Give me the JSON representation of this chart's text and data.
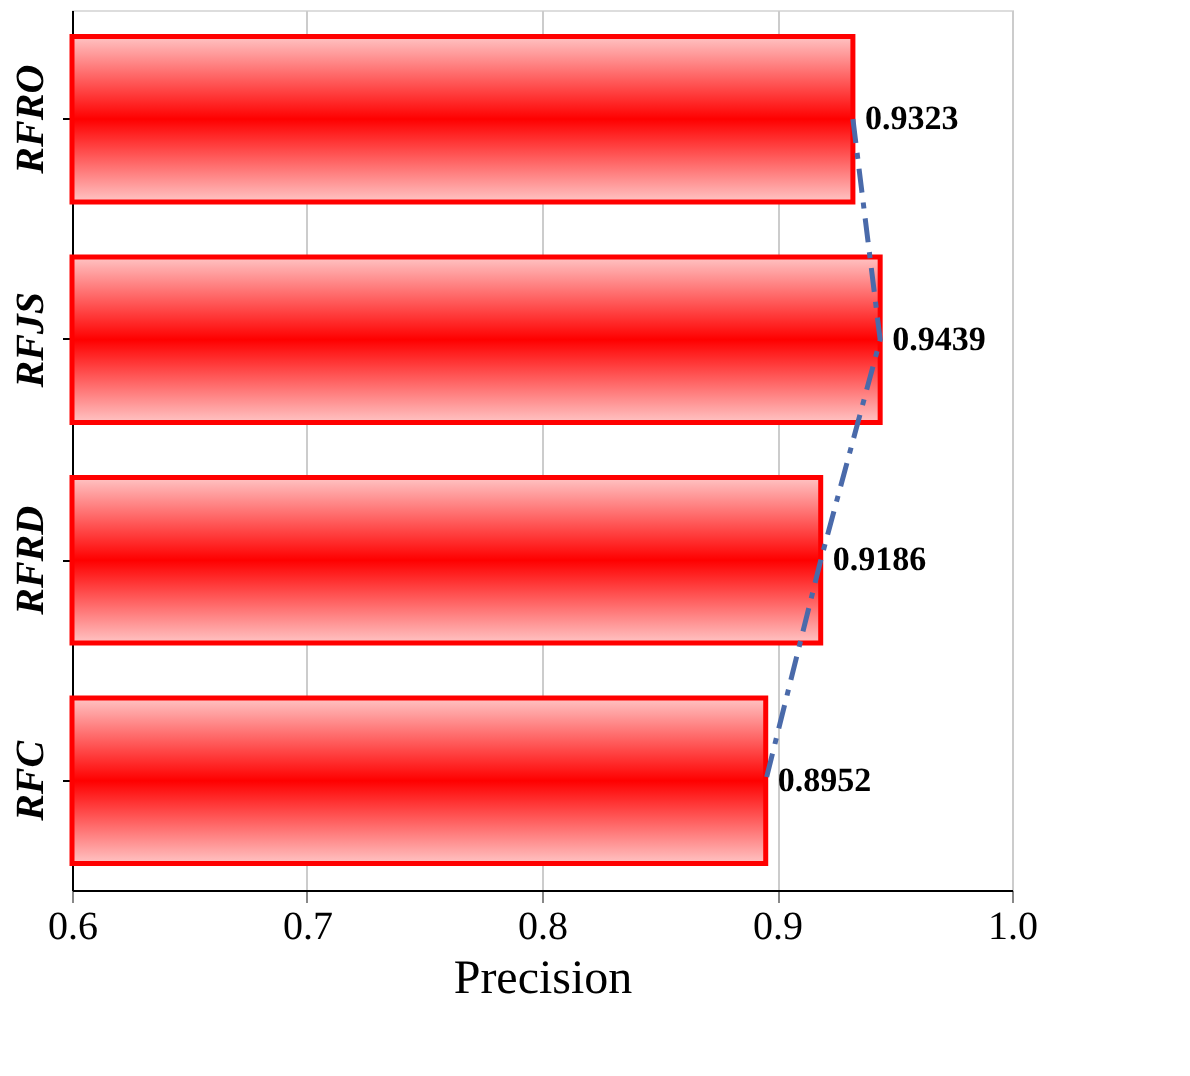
{
  "chart_data": {
    "type": "bar",
    "orientation": "horizontal",
    "xlabel": "Precision",
    "categories": [
      "RFRO",
      "RFJS",
      "RFRD",
      "RFC"
    ],
    "series": [
      {
        "color": "#ff0000",
        "values": [
          0.9323,
          0.9439,
          0.9186,
          0.8952
        ],
        "value_labels": [
          "0.9323",
          "0.9439",
          "0.9186",
          "0.8952"
        ]
      },
      {
        "type": "line",
        "color": "#4a6aaa",
        "line_style": "dashed",
        "values": [
          0.9323,
          0.9439,
          0.9186,
          0.8952
        ]
      }
    ],
    "xlim": [
      0.6,
      1.0
    ],
    "xticks": [
      0.6,
      0.7,
      0.8,
      0.9,
      {
        "value": 1.0,
        "label": "1.0"
      }
    ],
    "grid": "x"
  }
}
